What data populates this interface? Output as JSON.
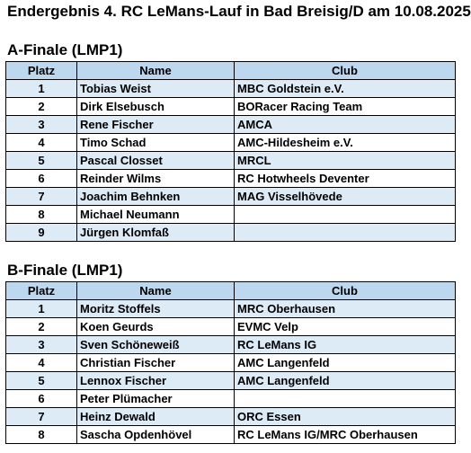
{
  "title": "Endergebnis 4. RC LeMans-Lauf in Bad Breisig/D am 10.08.2025",
  "columns": {
    "platz": "Platz",
    "name": "Name",
    "club": "Club"
  },
  "a_final": {
    "heading": "A-Finale (LMP1)",
    "rows": [
      {
        "platz": "1",
        "name": "Tobias Weist",
        "club": "MBC Goldstein e.V."
      },
      {
        "platz": "2",
        "name": "Dirk Elsebusch",
        "club": "BORacer Racing Team"
      },
      {
        "platz": "3",
        "name": "Rene Fischer",
        "club": "AMCA"
      },
      {
        "platz": "4",
        "name": "Timo Schad",
        "club": "AMC-Hildesheim e.V."
      },
      {
        "platz": "5",
        "name": "Pascal Closset",
        "club": "MRCL"
      },
      {
        "platz": "6",
        "name": "Reinder Wilms",
        "club": "RC Hotwheels Deventer"
      },
      {
        "platz": "7",
        "name": "Joachim Behnken",
        "club": "MAG Visselhövede"
      },
      {
        "platz": "8",
        "name": "Michael Neumann",
        "club": ""
      },
      {
        "platz": "9",
        "name": "Jürgen Klomfaß",
        "club": ""
      }
    ]
  },
  "b_final": {
    "heading": "B-Finale (LMP1)",
    "rows": [
      {
        "platz": "1",
        "name": "Moritz Stoffels",
        "club": "MRC Oberhausen"
      },
      {
        "platz": "2",
        "name": "Koen Geurds",
        "club": "EVMC Velp"
      },
      {
        "platz": "3",
        "name": "Sven Schöneweiß",
        "club": "RC LeMans IG"
      },
      {
        "platz": "4",
        "name": "Christian Fischer",
        "club": "AMC Langenfeld"
      },
      {
        "platz": "5",
        "name": "Lennox Fischer",
        "club": "AMC Langenfeld"
      },
      {
        "platz": "6",
        "name": "Peter Plümacher",
        "club": ""
      },
      {
        "platz": "7",
        "name": "Heinz Dewald",
        "club": "ORC Essen"
      },
      {
        "platz": "8",
        "name": "Sascha Opdenhövel",
        "club": "RC LeMans IG/MRC Oberhausen"
      }
    ]
  },
  "colors": {
    "header_bg": "#bdd7ee",
    "odd_row_bg": "#ddebf7",
    "even_row_bg": "#ffffff"
  }
}
